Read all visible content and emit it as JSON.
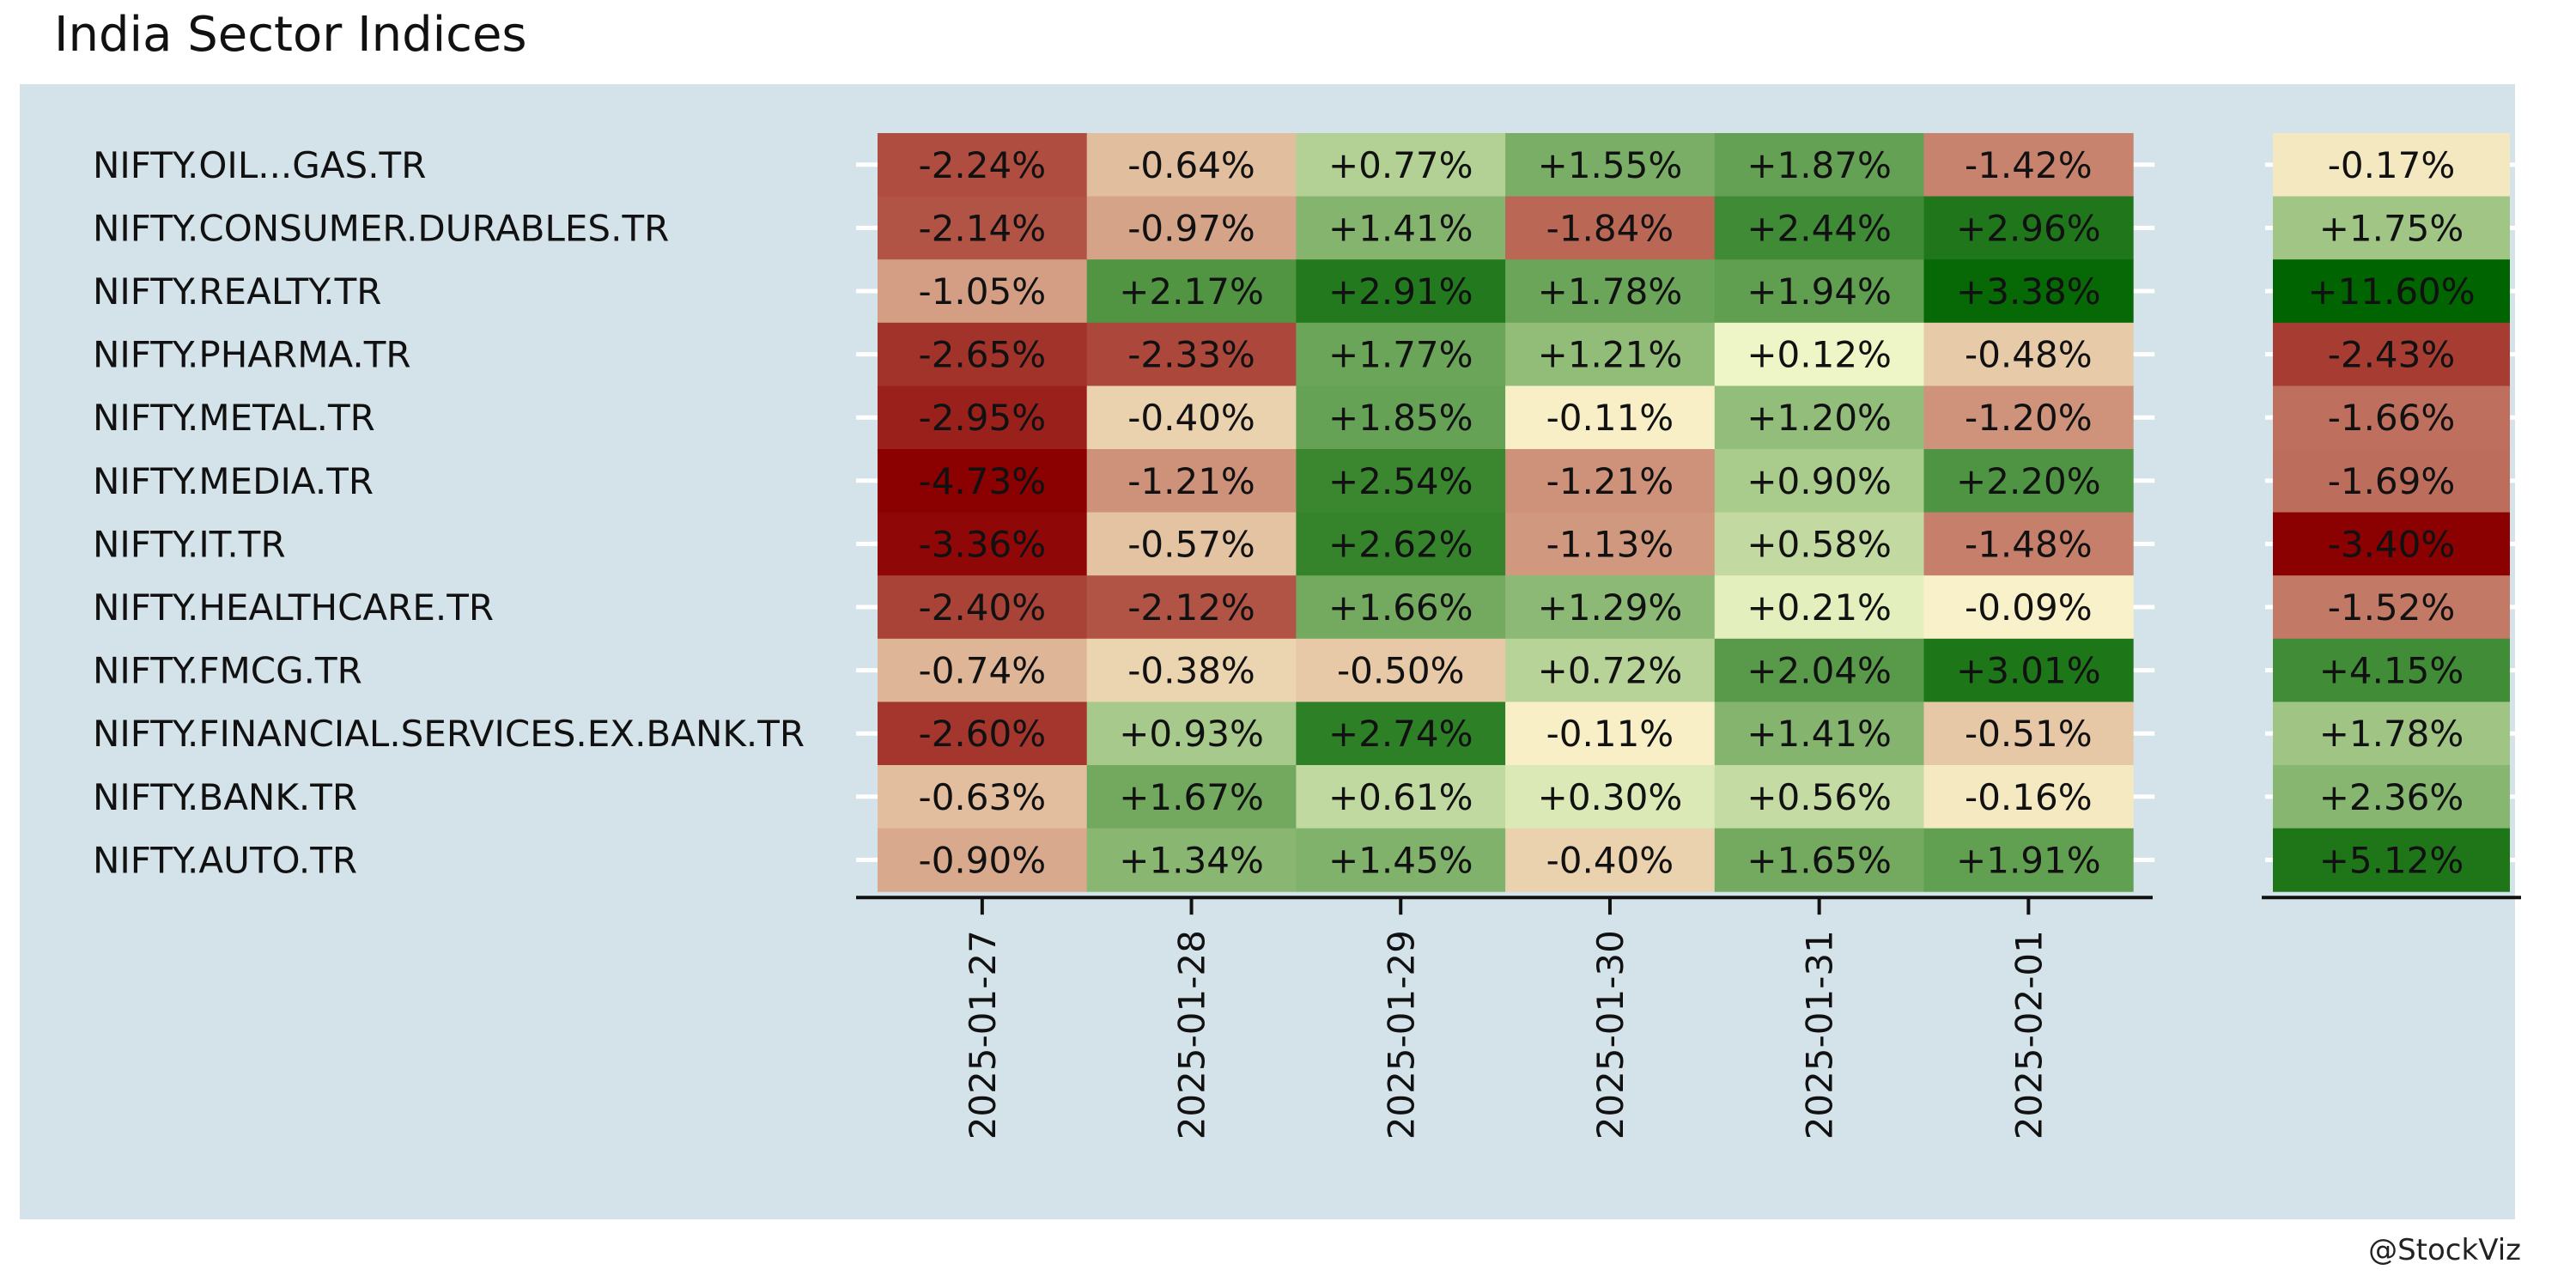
{
  "title": "India Sector Indices",
  "credit": "@StockViz",
  "colors": {
    "panel_background": "#d4e3ea",
    "negative_extreme": "#8b0000",
    "neutral": "#ffffd4",
    "positive_extreme": "#006400"
  },
  "chart_data": [
    {
      "type": "heatmap",
      "title": "",
      "xlabel": "",
      "ylabel": "",
      "rows": [
        "NIFTY.OIL...GAS.TR",
        "NIFTY.CONSUMER.DURABLES.TR",
        "NIFTY.REALTY.TR",
        "NIFTY.PHARMA.TR",
        "NIFTY.METAL.TR",
        "NIFTY.MEDIA.TR",
        "NIFTY.IT.TR",
        "NIFTY.HEALTHCARE.TR",
        "NIFTY.FMCG.TR",
        "NIFTY.FINANCIAL.SERVICES.EX.BANK.TR",
        "NIFTY.BANK.TR",
        "NIFTY.AUTO.TR"
      ],
      "columns": [
        "2025-01-27",
        "2025-01-28",
        "2025-01-29",
        "2025-01-30",
        "2025-01-31",
        "2025-02-01"
      ],
      "values": [
        [
          -2.24,
          -0.64,
          0.77,
          1.55,
          1.87,
          -1.42
        ],
        [
          -2.14,
          -0.97,
          1.41,
          -1.84,
          2.44,
          2.96
        ],
        [
          -1.05,
          2.17,
          2.91,
          1.78,
          1.94,
          3.38
        ],
        [
          -2.65,
          -2.33,
          1.77,
          1.21,
          0.12,
          -0.48
        ],
        [
          -2.95,
          -0.4,
          1.85,
          -0.11,
          1.2,
          -1.2
        ],
        [
          -4.73,
          -1.21,
          2.54,
          -1.21,
          0.9,
          2.2
        ],
        [
          -3.36,
          -0.57,
          2.62,
          -1.13,
          0.58,
          -1.48
        ],
        [
          -2.4,
          -2.12,
          1.66,
          1.29,
          0.21,
          -0.09
        ],
        [
          -0.74,
          -0.38,
          -0.5,
          0.72,
          2.04,
          3.01
        ],
        [
          -2.6,
          0.93,
          2.74,
          -0.11,
          1.41,
          -0.51
        ],
        [
          -0.63,
          1.67,
          0.61,
          0.3,
          0.56,
          -0.16
        ],
        [
          -0.9,
          1.34,
          1.45,
          -0.4,
          1.65,
          1.91
        ]
      ],
      "value_unit": "%",
      "color_scale": "red-yellow-green diverging",
      "color_range": [
        -3.5,
        3.5
      ]
    },
    {
      "type": "heatmap",
      "title": "",
      "rows": [
        "NIFTY.OIL...GAS.TR",
        "NIFTY.CONSUMER.DURABLES.TR",
        "NIFTY.REALTY.TR",
        "NIFTY.PHARMA.TR",
        "NIFTY.METAL.TR",
        "NIFTY.MEDIA.TR",
        "NIFTY.IT.TR",
        "NIFTY.HEALTHCARE.TR",
        "NIFTY.FMCG.TR",
        "NIFTY.FINANCIAL.SERVICES.EX.BANK.TR",
        "NIFTY.BANK.TR",
        "NIFTY.AUTO.TR"
      ],
      "columns": [
        ""
      ],
      "values": [
        [
          -0.17
        ],
        [
          1.75
        ],
        [
          11.6
        ],
        [
          -2.43
        ],
        [
          -1.66
        ],
        [
          -1.69
        ],
        [
          -3.4
        ],
        [
          -1.52
        ],
        [
          4.15
        ],
        [
          1.78
        ],
        [
          2.36
        ],
        [
          5.12
        ]
      ],
      "value_unit": "%",
      "color_scale": "red-yellow-green diverging",
      "color_range": [
        -3.4,
        6
      ]
    }
  ]
}
